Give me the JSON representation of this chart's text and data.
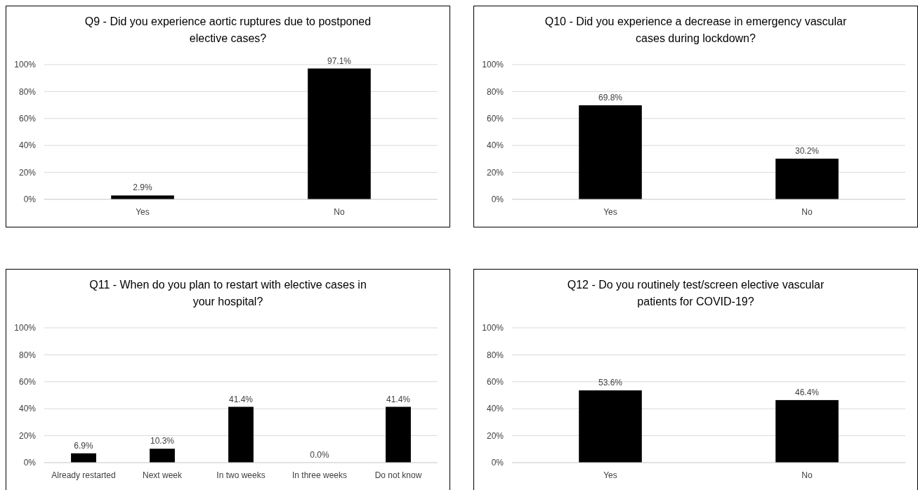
{
  "chart_data": [
    {
      "type": "bar",
      "title": "Q9 - Did you experience aortic ruptures due to postponed elective cases?",
      "categories": [
        "Yes",
        "No"
      ],
      "values": [
        2.9,
        97.1
      ],
      "value_labels": [
        "2.9%",
        "97.1%"
      ],
      "color": "#000000",
      "ylim": [
        0,
        100
      ],
      "yticks": [
        {
          "value": 0,
          "label": "0%"
        },
        {
          "value": 20,
          "label": "20%"
        },
        {
          "value": 40,
          "label": "40%"
        },
        {
          "value": 60,
          "label": "60%"
        },
        {
          "value": 80,
          "label": "80%"
        },
        {
          "value": 100,
          "label": "100%"
        }
      ],
      "grid": "y"
    },
    {
      "type": "bar",
      "title": "Q10 - Did you experience a decrease in emergency vascular cases during lockdown?",
      "categories": [
        "Yes",
        "No"
      ],
      "values": [
        69.8,
        30.2
      ],
      "value_labels": [
        "69.8%",
        "30.2%"
      ],
      "color": "#000000",
      "ylim": [
        0,
        100
      ],
      "yticks": [
        {
          "value": 0,
          "label": "0%"
        },
        {
          "value": 20,
          "label": "20%"
        },
        {
          "value": 40,
          "label": "40%"
        },
        {
          "value": 60,
          "label": "60%"
        },
        {
          "value": 80,
          "label": "80%"
        },
        {
          "value": 100,
          "label": "100%"
        }
      ],
      "grid": "y"
    },
    {
      "type": "bar",
      "title": "Q11 - When do you plan to restart with elective cases in your hospital?",
      "categories": [
        "Already restarted",
        "Next week",
        "In two weeks",
        "In three weeks",
        "Do not know"
      ],
      "values": [
        6.9,
        10.3,
        41.4,
        0.0,
        41.4
      ],
      "value_labels": [
        "6.9%",
        "10.3%",
        "41.4%",
        "0.0%",
        "41.4%"
      ],
      "color": "#000000",
      "ylim": [
        0,
        100
      ],
      "yticks": [
        {
          "value": 0,
          "label": "0%"
        },
        {
          "value": 20,
          "label": "20%"
        },
        {
          "value": 40,
          "label": "40%"
        },
        {
          "value": 60,
          "label": "60%"
        },
        {
          "value": 80,
          "label": "80%"
        },
        {
          "value": 100,
          "label": "100%"
        }
      ],
      "grid": "y"
    },
    {
      "type": "bar",
      "title": "Q12 - Do you routinely test/screen elective vascular patients for COVID-19?",
      "categories": [
        "Yes",
        "No"
      ],
      "values": [
        53.6,
        46.4
      ],
      "value_labels": [
        "53.6%",
        "46.4%"
      ],
      "color": "#000000",
      "ylim": [
        0,
        100
      ],
      "yticks": [
        {
          "value": 0,
          "label": "0%"
        },
        {
          "value": 20,
          "label": "20%"
        },
        {
          "value": 40,
          "label": "40%"
        },
        {
          "value": 60,
          "label": "60%"
        },
        {
          "value": 80,
          "label": "80%"
        },
        {
          "value": 100,
          "label": "100%"
        }
      ],
      "grid": "y"
    }
  ]
}
